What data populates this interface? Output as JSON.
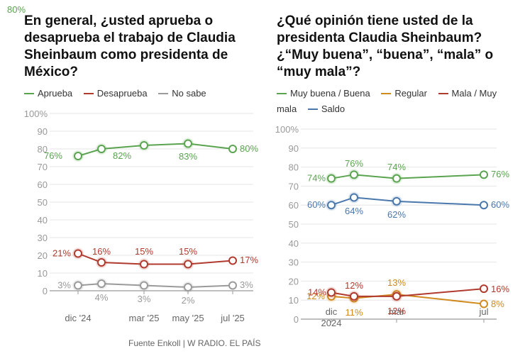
{
  "source": "Fuente Enkoll | W RADIO. EL PAÍS",
  "chart_data": [
    {
      "type": "line",
      "title": "En general, ¿usted aprueba o desaprueba el trabajo de Claudia Sheinbaum como presidenta de México?",
      "ylim": [
        0,
        100
      ],
      "y_ticks": [
        "0",
        "10",
        "20",
        "30",
        "40",
        "50",
        "60",
        "70",
        "80",
        "90",
        "100%"
      ],
      "x_tick_labels": [
        "dic '24",
        "mar '25",
        "may '25",
        "jul '25"
      ],
      "grid": true,
      "legend_position": "top",
      "series": [
        {
          "name": "Aprueba",
          "color": "#5aa44f",
          "values": [
            76,
            80,
            82,
            83,
            80
          ],
          "labels": [
            "76%",
            "80%",
            "82%",
            "83%",
            "80%"
          ]
        },
        {
          "name": "Desaprueba",
          "color": "#b03a2e",
          "values": [
            21,
            16,
            15,
            15,
            17
          ],
          "labels": [
            "21%",
            "16%",
            "15%",
            "15%",
            "17%"
          ]
        },
        {
          "name": "No sabe",
          "color": "#9a9a9a",
          "values": [
            3,
            4,
            3,
            2,
            3
          ],
          "labels": [
            "3%",
            "4%",
            "3%",
            "2%",
            "3%"
          ]
        }
      ]
    },
    {
      "type": "line",
      "title": "¿Qué opinión tiene usted de la presidenta Claudia Sheinbaum? ¿“Muy buena”, “buena”, “mala” o “muy mala”?",
      "ylim": [
        0,
        100
      ],
      "y_ticks": [
        "0",
        "10",
        "20",
        "30",
        "40",
        "50",
        "60",
        "70",
        "80",
        "90",
        "100%"
      ],
      "x_tick_labels": [
        "dic\n2024",
        "mar",
        "jul"
      ],
      "grid": true,
      "legend_position": "top",
      "series": [
        {
          "name": "Muy buena / Buena",
          "color": "#5aa44f",
          "values": [
            74,
            76,
            74,
            76
          ],
          "labels": [
            "74%",
            "76%",
            "74%",
            "76%"
          ]
        },
        {
          "name": "Saldo",
          "color": "#4a78ad",
          "values": [
            60,
            64,
            62,
            60
          ],
          "labels": [
            "60%",
            "64%",
            "62%",
            "60%"
          ]
        },
        {
          "name": "Regular",
          "color": "#d18a1e",
          "values": [
            12,
            11,
            13,
            8
          ],
          "labels": [
            "12%",
            "11%",
            "13%",
            "8%"
          ]
        },
        {
          "name": "Mala / Muy mala",
          "color": "#b03a2e",
          "values": [
            14,
            12,
            12,
            16
          ],
          "labels": [
            "14%",
            "12%",
            "12%",
            "16%"
          ]
        }
      ]
    }
  ]
}
